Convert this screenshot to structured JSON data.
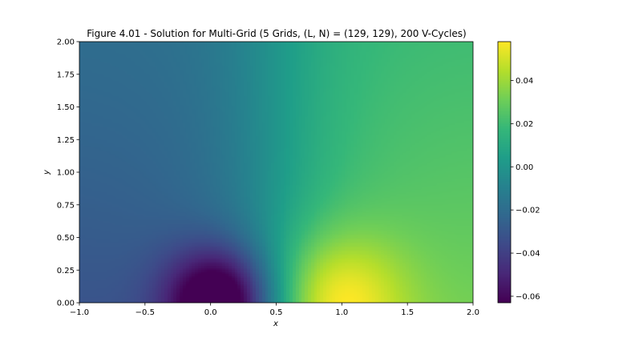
{
  "chart_data": {
    "type": "heatmap",
    "title": "Figure 4.01 - Solution for Multi-Grid (5 Grids, (L, N) = (129, 129), 200 V-Cycles)",
    "xlabel": "x",
    "ylabel": "y",
    "xlim": [
      -1.0,
      2.0
    ],
    "ylim": [
      0.0,
      2.0
    ],
    "grid": [
      129,
      129
    ],
    "x_ticks": [
      "−1.0",
      "−0.5",
      "0.0",
      "0.5",
      "1.0",
      "1.5",
      "2.0"
    ],
    "x_tick_values": [
      -1.0,
      -0.5,
      0.0,
      0.5,
      1.0,
      1.5,
      2.0
    ],
    "y_ticks": [
      "0.00",
      "0.25",
      "0.50",
      "0.75",
      "1.00",
      "1.25",
      "1.50",
      "1.75",
      "2.00"
    ],
    "y_tick_values": [
      0.0,
      0.25,
      0.5,
      0.75,
      1.0,
      1.25,
      1.5,
      1.75,
      2.0
    ],
    "colormap": "viridis",
    "colorbar": {
      "vmin": -0.063,
      "vmax": 0.058,
      "ticks": [
        "−0.06",
        "−0.04",
        "−0.02",
        "0.00",
        "0.02",
        "0.04"
      ],
      "tick_values": [
        -0.06,
        -0.04,
        -0.02,
        0.0,
        0.02,
        0.04
      ]
    },
    "features": {
      "min": {
        "x": 0.08,
        "y": 0.0,
        "value": -0.063
      },
      "max": {
        "x": 0.95,
        "y": 0.0,
        "value": 0.058
      }
    }
  }
}
